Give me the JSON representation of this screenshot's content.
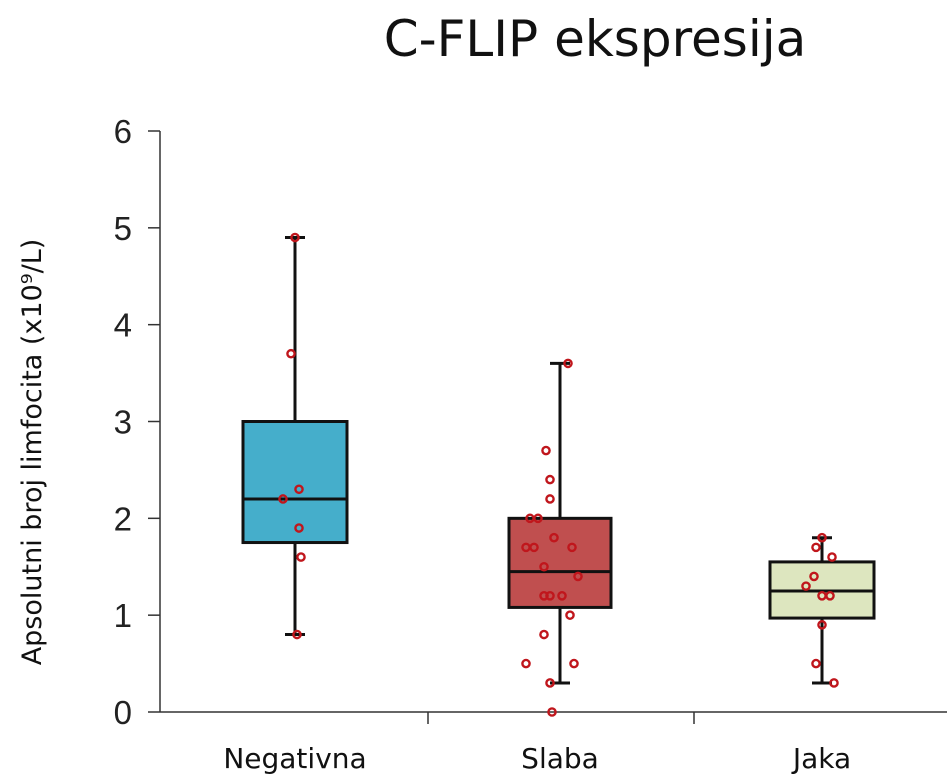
{
  "chart_data": {
    "type": "box",
    "title": "C-FLIP ekspresija",
    "ylabel": "Apsolutni broj limfocita (x10⁹/L)",
    "xlabel": "",
    "ylim": [
      0,
      6
    ],
    "yticks": [
      0,
      1,
      2,
      3,
      4,
      5,
      6
    ],
    "grid": false,
    "categories": [
      "Negativna",
      "Slaba",
      "Jaka"
    ],
    "boxes": [
      {
        "category": "Negativna",
        "color": "#45AECB",
        "min": 0.8,
        "q1": 1.75,
        "median": 2.2,
        "q3": 3.0,
        "max": 4.9
      },
      {
        "category": "Slaba",
        "color": "#C04F4F",
        "min": 0.3,
        "q1": 1.08,
        "median": 1.45,
        "q3": 2.0,
        "max": 3.6
      },
      {
        "category": "Jaka",
        "color": "#DDE6BF",
        "min": 0.3,
        "q1": 0.97,
        "median": 1.25,
        "q3": 1.55,
        "max": 1.8
      }
    ],
    "points": [
      {
        "category": "Negativna",
        "values": [
          4.9,
          3.7,
          2.3,
          2.2,
          1.9,
          1.6,
          0.8
        ]
      },
      {
        "category": "Slaba",
        "values": [
          3.6,
          2.7,
          2.4,
          2.2,
          2.0,
          2.0,
          1.8,
          1.7,
          1.7,
          1.7,
          1.5,
          1.4,
          1.2,
          1.2,
          1.2,
          1.0,
          0.8,
          0.5,
          0.5,
          0.3,
          0.0
        ]
      },
      {
        "category": "Jaka",
        "values": [
          1.8,
          1.7,
          1.6,
          1.4,
          1.3,
          1.2,
          1.2,
          0.9,
          0.5,
          0.3
        ]
      }
    ],
    "point_color": "#C0161C"
  }
}
